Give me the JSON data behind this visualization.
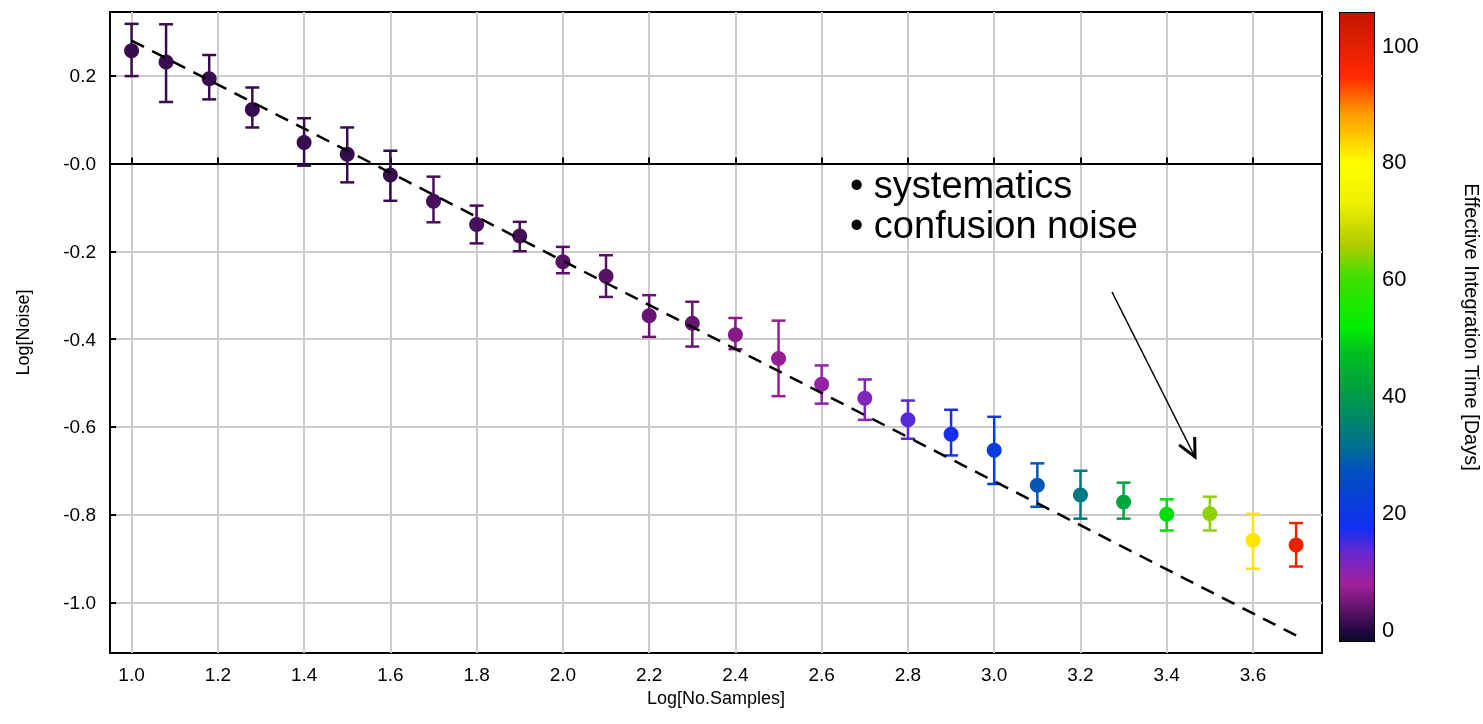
{
  "chart_data": {
    "type": "scatter",
    "xlabel": "Log[No.Samples]",
    "ylabel": "Log[Noise]",
    "clabel": "Effective Integration Time [Days]",
    "xlim": [
      0.95,
      3.76
    ],
    "xticks": [
      {
        "value": 1,
        "label": "1.0"
      },
      {
        "value": 1.2,
        "label": "1.2"
      },
      {
        "value": 1.4,
        "label": "1.4"
      },
      {
        "value": 1.6,
        "label": "1.6"
      },
      {
        "value": 1.8,
        "label": "1.8"
      },
      {
        "value": 2,
        "label": "2.0"
      },
      {
        "value": 2.2,
        "label": "2.2"
      },
      {
        "value": 2.4,
        "label": "2.4"
      },
      {
        "value": 2.6,
        "label": "2.6"
      },
      {
        "value": 2.8,
        "label": "2.8"
      },
      {
        "value": 3,
        "label": "3.0"
      },
      {
        "value": 3.2,
        "label": "3.2"
      },
      {
        "value": 3.4,
        "label": "3.4"
      },
      {
        "value": 3.6,
        "label": "3.6"
      }
    ],
    "ylim": [
      -1.115,
      0.345
    ],
    "yticks": [
      {
        "value": -1,
        "label": "-1.0"
      },
      -0.8,
      -0.6,
      -0.4,
      -0.2,
      {
        "value": 0,
        "label": "-0.0"
      },
      0.2
    ],
    "clim": [
      -2,
      105.5
    ],
    "cticks": [
      0,
      20,
      40,
      60,
      80,
      100
    ],
    "grid": true,
    "marker": "circle",
    "series": [
      {
        "x": [
          1.0,
          1.08,
          1.18,
          1.28,
          1.4,
          1.5,
          1.6,
          1.7,
          1.8,
          1.9,
          2.0,
          2.1,
          2.2,
          2.3,
          2.4,
          2.5,
          2.6,
          2.7,
          2.8,
          2.9,
          3.0,
          3.1,
          3.2,
          3.3,
          3.4,
          3.5,
          3.6,
          3.7
        ],
        "values": [
          0.257,
          0.231,
          0.193,
          0.123,
          0.048,
          0.021,
          -0.026,
          -0.086,
          -0.139,
          -0.165,
          -0.224,
          -0.257,
          -0.347,
          -0.364,
          -0.39,
          -0.444,
          -0.503,
          -0.535,
          -0.584,
          -0.617,
          -0.653,
          -0.733,
          -0.755,
          -0.771,
          -0.799,
          -0.798,
          -0.858,
          -0.869
        ],
        "errors": [
          [
            0.199,
            0.318
          ],
          [
            0.14,
            0.317
          ],
          [
            0.146,
            0.247
          ],
          [
            0.082,
            0.173
          ],
          [
            -0.005,
            0.103
          ],
          [
            -0.043,
            0.082
          ],
          [
            -0.085,
            0.029
          ],
          [
            -0.134,
            -0.03
          ],
          [
            -0.182,
            -0.096
          ],
          [
            -0.2,
            -0.133
          ],
          [
            -0.25,
            -0.19
          ],
          [
            -0.304,
            -0.209
          ],
          [
            -0.395,
            -0.3
          ],
          [
            -0.417,
            -0.315
          ],
          [
            -0.423,
            -0.352
          ],
          [
            -0.53,
            -0.358
          ],
          [
            -0.547,
            -0.46
          ],
          [
            -0.584,
            -0.492
          ],
          [
            -0.627,
            -0.54
          ],
          [
            -0.665,
            -0.561
          ],
          [
            -0.73,
            -0.577
          ],
          [
            -0.782,
            -0.683
          ],
          [
            -0.809,
            -0.7
          ],
          [
            -0.809,
            -0.727
          ],
          [
            -0.836,
            -0.765
          ],
          [
            -0.836,
            -0.759
          ],
          [
            -0.923,
            -0.798
          ],
          [
            -0.918,
            -0.819
          ]
        ],
        "cvalues": [
          1,
          1,
          1,
          1,
          1,
          1,
          1,
          2,
          2,
          2,
          3,
          3,
          4,
          4,
          6,
          7,
          9,
          11,
          14,
          17,
          21,
          28,
          33,
          42,
          50,
          64,
          82,
          98
        ],
        "colors": [
          "#370c4f",
          "#370c4f",
          "#370c4f",
          "#370c4f",
          "#370c4f",
          "#370c4f",
          "#370c4f",
          "#470f5a",
          "#470f5a",
          "#470f5a",
          "#571265",
          "#571265",
          "#661570",
          "#661570",
          "#861b87",
          "#951e92",
          "#9322a7",
          "#7f25bb",
          "#562ad7",
          "#172fed",
          "#0a3cde",
          "#0057b5",
          "#007882",
          "#00a53b",
          "#00dc0d",
          "#8cd200",
          "#ffe500",
          "#ec2300"
        ]
      },
      {
        "type": "line",
        "x": [
          1.0,
          3.7
        ],
        "values": [
          0.28,
          -1.075
        ],
        "color": "#000000",
        "line_style": "dashed",
        "marker": "none"
      }
    ],
    "annotations": [
      "• systematics\n• confusion noise"
    ]
  }
}
